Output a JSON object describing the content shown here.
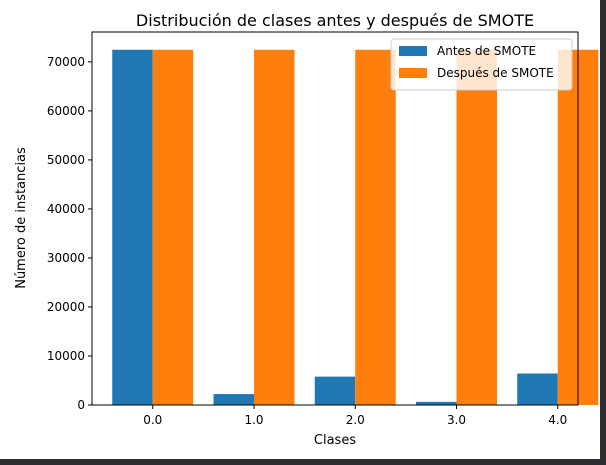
{
  "chart_data": {
    "type": "bar",
    "title": "Distribución de clases antes y después de SMOTE",
    "xlabel": "Clases",
    "ylabel": "Número de instancias",
    "categories": [
      "0.0",
      "1.0",
      "2.0",
      "3.0",
      "4.0"
    ],
    "series": [
      {
        "name": "Antes de SMOTE",
        "color": "#1f77b4",
        "values": [
          72471,
          2223,
          5788,
          641,
          6431
        ]
      },
      {
        "name": "Después de SMOTE",
        "color": "#ff7f0e",
        "values": [
          72471,
          72471,
          72471,
          72471,
          72471
        ]
      }
    ],
    "ylim": [
      0,
      76095
    ],
    "yticks": [
      0,
      10000,
      20000,
      30000,
      40000,
      50000,
      60000,
      70000
    ],
    "ytick_labels": [
      "0",
      "10000",
      "20000",
      "30000",
      "40000",
      "50000",
      "60000",
      "70000"
    ],
    "grid": false,
    "legend_position": "top-right"
  }
}
